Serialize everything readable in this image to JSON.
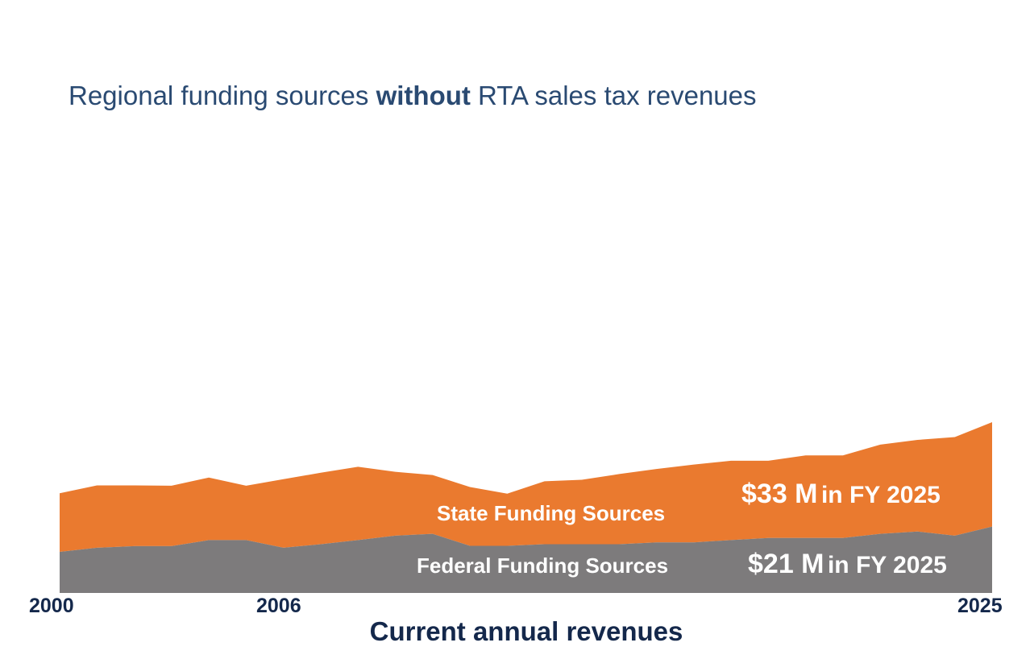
{
  "title": {
    "prefix": "Regional funding sources ",
    "emphasis": "without",
    "suffix": " RTA sales tax revenues"
  },
  "colors": {
    "state": "#ea7a2f",
    "federal": "#7d7b7c",
    "text_dark": "#14284b",
    "title": "#2a4a72"
  },
  "chart_data": {
    "type": "area",
    "stacked": true,
    "title": "Regional funding sources without RTA sales tax revenues",
    "xlabel": "Current annual revenues",
    "ylabel": "",
    "x": [
      2000,
      2001,
      2002,
      2003,
      2004,
      2005,
      2006,
      2007,
      2008,
      2009,
      2010,
      2011,
      2012,
      2013,
      2014,
      2015,
      2016,
      2017,
      2018,
      2019,
      2020,
      2021,
      2022,
      2023,
      2024,
      2025
    ],
    "x_tick_labels": [
      "2000",
      "2006",
      "2025"
    ],
    "ylim": [
      0,
      54
    ],
    "series": [
      {
        "name": "Federal Funding Sources",
        "values": [
          13,
          14.3,
          14.8,
          14.8,
          16.7,
          16.7,
          14.3,
          15.4,
          16.7,
          18.1,
          18.7,
          14.9,
          14.9,
          15.4,
          15.4,
          15.4,
          16,
          16,
          16.7,
          17.4,
          17.4,
          17.4,
          18.7,
          19.4,
          18.1,
          21
        ]
      },
      {
        "name": "State Funding Sources",
        "values": [
          18.5,
          19.7,
          19.2,
          19.1,
          19.8,
          17.2,
          21.7,
          22.6,
          23.2,
          20.2,
          18.6,
          18.6,
          16.5,
          19.9,
          20.4,
          22.2,
          23.2,
          24.6,
          25.1,
          24.4,
          26.1,
          26.1,
          28.2,
          29,
          31.2,
          33
        ]
      }
    ],
    "annotations": [
      {
        "series": "State Funding Sources",
        "value": "$33 M",
        "suffix": "in FY 2025"
      },
      {
        "series": "Federal Funding Sources",
        "value": "$21 M",
        "suffix": "in FY 2025"
      }
    ]
  }
}
